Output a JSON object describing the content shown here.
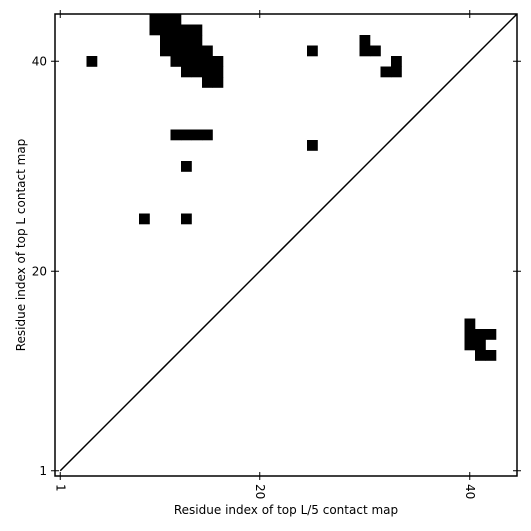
{
  "chart_data": {
    "type": "scatter",
    "marker": "square",
    "color": "#000000",
    "xlabel": "Residue index of top L/5 contact map",
    "ylabel": "Residue index of top L contact map",
    "xlim": [
      0.5,
      44.5
    ],
    "ylim": [
      0.5,
      44.5
    ],
    "xticks": [
      1,
      20,
      40
    ],
    "yticks": [
      1,
      20,
      40
    ],
    "x": [
      10,
      11,
      12,
      10,
      11,
      12,
      13,
      14,
      11,
      12,
      13,
      14,
      11,
      12,
      13,
      14,
      15,
      12,
      13,
      14,
      15,
      16,
      13,
      14,
      15,
      16,
      15,
      16,
      4,
      25,
      30,
      30,
      31,
      33,
      32,
      33,
      12,
      13,
      14,
      15,
      25,
      13,
      9,
      13,
      40,
      40,
      41,
      42,
      40,
      41,
      41,
      42
    ],
    "y": [
      44,
      44,
      44,
      43,
      43,
      43,
      43,
      43,
      42,
      42,
      42,
      42,
      41,
      41,
      41,
      41,
      41,
      40,
      40,
      40,
      40,
      40,
      39,
      39,
      39,
      39,
      38,
      38,
      40,
      41,
      42,
      41,
      41,
      40,
      39,
      39,
      33,
      33,
      33,
      33,
      32,
      30,
      25,
      25,
      15,
      14,
      14,
      14,
      13,
      13,
      12,
      12
    ]
  }
}
